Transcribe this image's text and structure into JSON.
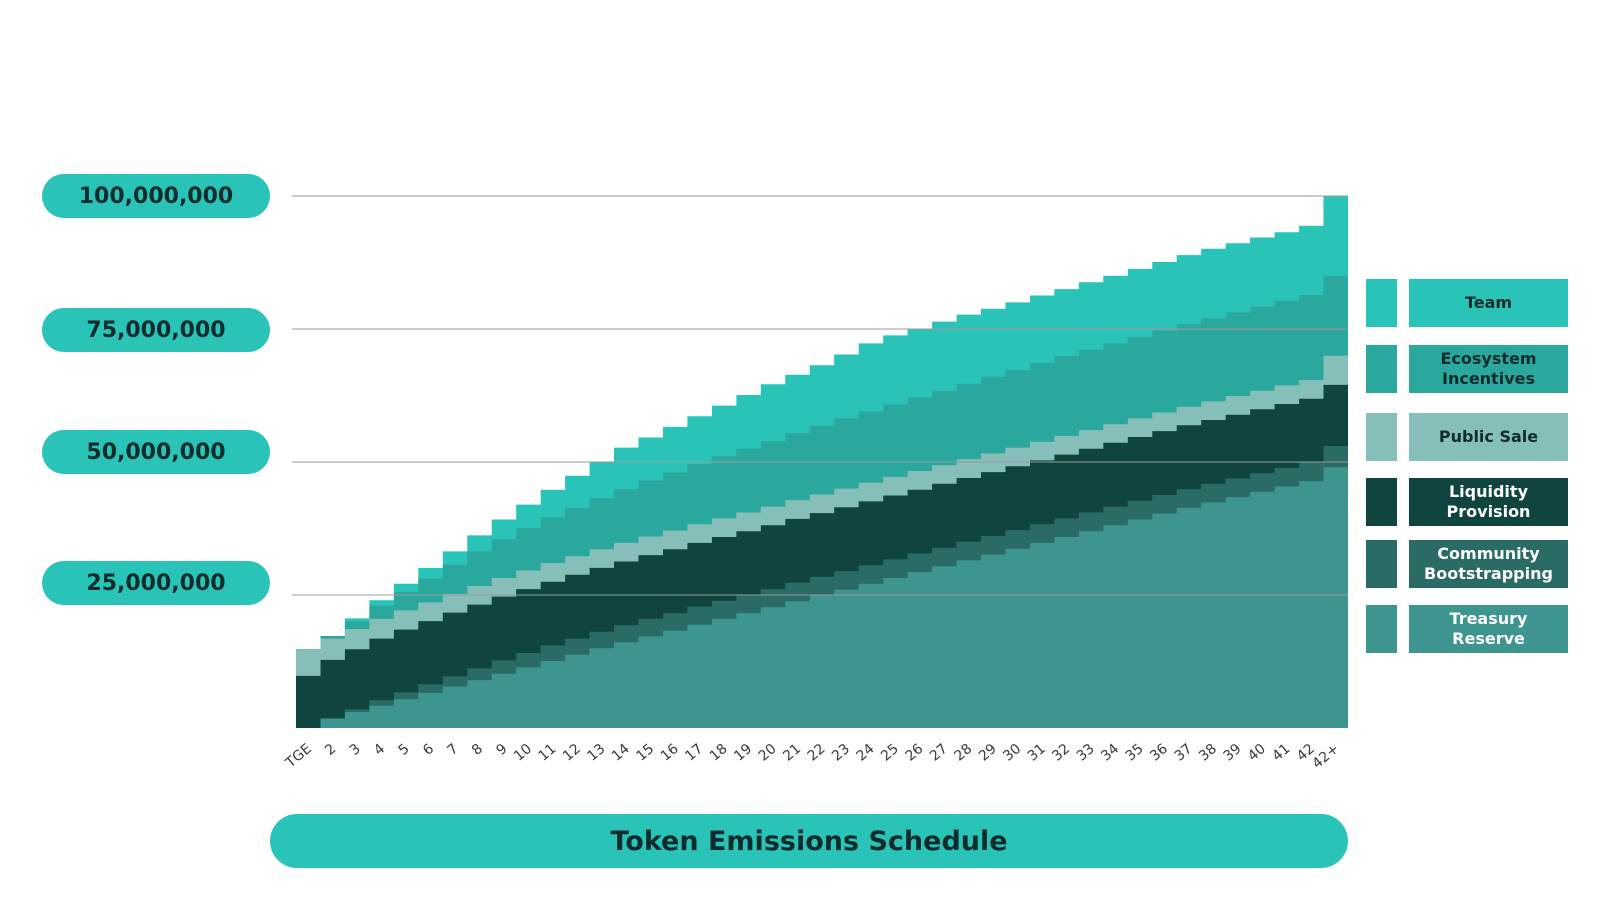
{
  "chart_data": {
    "type": "area",
    "stacked": true,
    "title": "Token Emissions Schedule",
    "xlabel": "",
    "ylabel": "",
    "ylim": [
      0,
      100000000
    ],
    "grid": true,
    "legend_position": "right",
    "y_ticks": [
      {
        "value": 100000000,
        "label": "100,000,000"
      },
      {
        "value": 75000000,
        "label": "75,000,000"
      },
      {
        "value": 50000000,
        "label": "50,000,000"
      },
      {
        "value": 25000000,
        "label": "25,000,000"
      }
    ],
    "x": [
      "TGE",
      "2",
      "3",
      "4",
      "5",
      "6",
      "7",
      "8",
      "9",
      "10",
      "11",
      "12",
      "13",
      "14",
      "15",
      "16",
      "17",
      "18",
      "19",
      "20",
      "21",
      "22",
      "23",
      "24",
      "25",
      "26",
      "27",
      "28",
      "29",
      "30",
      "31",
      "32",
      "33",
      "34",
      "35",
      "36",
      "37",
      "38",
      "39",
      "40",
      "41",
      "42",
      "42+"
    ],
    "series": [
      {
        "name": "Treasury\nReserve",
        "color": "#3e958f",
        "values": [
          0,
          1700000,
          3000000,
          4200000,
          5400000,
          6600000,
          7800000,
          9000000,
          10200000,
          11400000,
          12600000,
          13800000,
          15000000,
          16100000,
          17200000,
          18300000,
          19400000,
          20500000,
          21600000,
          22700000,
          23800000,
          24900000,
          26000000,
          27100000,
          28200000,
          29300000,
          30400000,
          31500000,
          32600000,
          33700000,
          34800000,
          35900000,
          37000000,
          38100000,
          39200000,
          40300000,
          41400000,
          42400000,
          43400000,
          44400000,
          45400000,
          46400000,
          49000000
        ]
      },
      {
        "name": "Community\nBootstrapping",
        "color": "#2a6b65",
        "values": [
          0,
          200000,
          500000,
          1000000,
          1300000,
          1600000,
          1900000,
          2200000,
          2500000,
          2700000,
          2900000,
          3000000,
          3100000,
          3200000,
          3300000,
          3300000,
          3400000,
          3400000,
          3400000,
          3400000,
          3500000,
          3500000,
          3500000,
          3500000,
          3500000,
          3500000,
          3500000,
          3500000,
          3500000,
          3500000,
          3500000,
          3500000,
          3500000,
          3500000,
          3500000,
          3500000,
          3500000,
          3500000,
          3500000,
          3500000,
          3500000,
          3500000,
          4000000
        ]
      },
      {
        "name": "Liquidity\nProvision",
        "color": "#10453f",
        "values": [
          9800000,
          10900000,
          11300000,
          11600000,
          11800000,
          11900000,
          12000000,
          12000000,
          12000000,
          12000000,
          12000000,
          12000000,
          12000000,
          12000000,
          12000000,
          12000000,
          12000000,
          12000000,
          12000000,
          12000000,
          12000000,
          12000000,
          12000000,
          12000000,
          12000000,
          12000000,
          12000000,
          12000000,
          12000000,
          12000000,
          12000000,
          12000000,
          12000000,
          12000000,
          12000000,
          12000000,
          12000000,
          12000000,
          12000000,
          12000000,
          12000000,
          12000000,
          11500000
        ]
      },
      {
        "name": "Public Sale",
        "color": "#86bfba",
        "values": [
          5000000,
          4000000,
          3800000,
          3700000,
          3600000,
          3500000,
          3500000,
          3500000,
          3500000,
          3500000,
          3500000,
          3500000,
          3500000,
          3500000,
          3500000,
          3500000,
          3500000,
          3500000,
          3500000,
          3500000,
          3500000,
          3500000,
          3500000,
          3500000,
          3500000,
          3500000,
          3500000,
          3500000,
          3500000,
          3500000,
          3500000,
          3500000,
          3500000,
          3500000,
          3500000,
          3500000,
          3500000,
          3500000,
          3500000,
          3500000,
          3500000,
          3500000,
          5500000
        ]
      },
      {
        "name": "Ecosystem\nIncentives",
        "color": "#2aa89e",
        "values": [
          0,
          500000,
          1500000,
          2500000,
          3500000,
          4500000,
          5500000,
          6500000,
          7300000,
          8000000,
          8600000,
          9100000,
          9600000,
          10100000,
          10500000,
          10900000,
          11300000,
          11700000,
          12000000,
          12300000,
          12600000,
          12900000,
          13200000,
          13400000,
          13600000,
          13800000,
          14000000,
          14200000,
          14400000,
          14600000,
          14800000,
          15000000,
          15100000,
          15200000,
          15300000,
          15400000,
          15500000,
          15600000,
          15700000,
          15800000,
          15900000,
          16000000,
          15000000
        ]
      },
      {
        "name": "Team",
        "color": "#29c3b8",
        "values": [
          0,
          0,
          500000,
          1000000,
          1500000,
          2000000,
          2500000,
          3000000,
          3700000,
          4400000,
          5200000,
          6000000,
          6900000,
          7800000,
          8100000,
          8600000,
          9000000,
          9500000,
          10100000,
          10700000,
          11000000,
          11400000,
          12000000,
          12800000,
          13000000,
          13000000,
          13000000,
          13000000,
          12800000,
          12700000,
          12700000,
          12600000,
          12700000,
          12700000,
          12800000,
          12900000,
          13000000,
          13100000,
          13000000,
          13000000,
          12900000,
          13000000,
          15000000
        ]
      }
    ]
  },
  "legend": [
    {
      "label": "Team",
      "color": "#29c3b8",
      "text_color": "#0e2c2c"
    },
    {
      "label": "Ecosystem\nIncentives",
      "color": "#2aa89e",
      "text_color": "#0e2c2c"
    },
    {
      "label": "Public Sale",
      "color": "#86bfba",
      "text_color": "#0e2c2c"
    },
    {
      "label": "Liquidity\nProvision",
      "color": "#10453f",
      "text_color": "#ffffff"
    },
    {
      "label": "Community\nBootstrapping",
      "color": "#2a6b65",
      "text_color": "#ffffff"
    },
    {
      "label": "Treasury\nReserve",
      "color": "#3e958f",
      "text_color": "#ffffff"
    }
  ]
}
